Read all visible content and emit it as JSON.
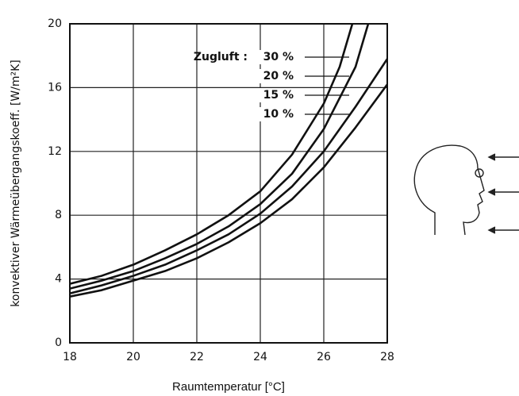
{
  "chart_data": {
    "type": "line",
    "ylabel": "konvektiver Wärmeübergangskoeff. [W/m²K]",
    "xlabel": "Raumtemperatur [°C]",
    "legend_title": "Zugluft :",
    "xlim": [
      18,
      28
    ],
    "xticks": [
      18,
      20,
      22,
      24,
      26,
      28
    ],
    "ylim": [
      0,
      20
    ],
    "yticks": [
      0,
      4,
      8,
      12,
      16,
      20
    ],
    "grid": true,
    "series": [
      {
        "name": "30 %",
        "color": "#111111",
        "x": [
          18,
          19,
          20,
          21,
          22,
          23,
          24,
          25,
          26,
          26.5,
          26.9
        ],
        "values": [
          3.7,
          4.2,
          4.9,
          5.8,
          6.8,
          8.0,
          9.5,
          11.8,
          15.0,
          17.3,
          20
        ]
      },
      {
        "name": "20 %",
        "color": "#111111",
        "x": [
          18,
          19,
          20,
          21,
          22,
          23,
          24,
          25,
          26,
          27,
          27.4
        ],
        "values": [
          3.4,
          3.9,
          4.5,
          5.3,
          6.2,
          7.3,
          8.7,
          10.6,
          13.4,
          17.3,
          20
        ]
      },
      {
        "name": "15 %",
        "color": "#111111",
        "x": [
          18,
          19,
          20,
          21,
          22,
          23,
          24,
          25,
          26,
          27,
          28
        ],
        "values": [
          3.1,
          3.6,
          4.2,
          4.9,
          5.8,
          6.8,
          8.1,
          9.8,
          12.0,
          14.8,
          17.8
        ]
      },
      {
        "name": "10 %",
        "color": "#111111",
        "x": [
          18,
          19,
          20,
          21,
          22,
          23,
          24,
          25,
          26,
          27,
          28
        ],
        "values": [
          2.9,
          3.3,
          3.9,
          4.5,
          5.3,
          6.3,
          7.5,
          9.0,
          11.0,
          13.5,
          16.2
        ]
      }
    ]
  }
}
